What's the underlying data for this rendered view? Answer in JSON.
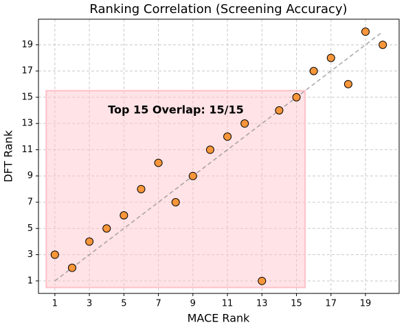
{
  "chart_data": {
    "type": "scatter",
    "title": "Ranking Correlation (Screening Accuracy)",
    "x_label": "MACE Rank",
    "y_label": "DFT Rank",
    "annotation": "Top 15 Overlap: 15/15",
    "annotation_color": "#ff0000",
    "x": [
      1,
      2,
      3,
      4,
      5,
      6,
      7,
      8,
      9,
      10,
      11,
      12,
      13,
      14,
      15,
      16,
      17,
      18,
      19,
      20
    ],
    "values": [
      3,
      2,
      4,
      5,
      6,
      8,
      10,
      7,
      9,
      11,
      12,
      13,
      1,
      14,
      15,
      17,
      18,
      16,
      20,
      19
    ],
    "color": "#f7963a",
    "highlight_x": [
      0.5,
      15.5
    ],
    "highlight_y": [
      0.5,
      15.5
    ],
    "highlight_color": "#ffc0c8",
    "diagonal": [
      1,
      20
    ],
    "xlim": [
      0.05,
      20.95
    ],
    "ylim": [
      0.05,
      20.95
    ],
    "xticks": [
      1,
      3,
      5,
      7,
      9,
      11,
      13,
      15,
      17,
      19
    ],
    "yticks": [
      1,
      3,
      5,
      7,
      9,
      11,
      13,
      15,
      17,
      19
    ],
    "grid": true
  }
}
